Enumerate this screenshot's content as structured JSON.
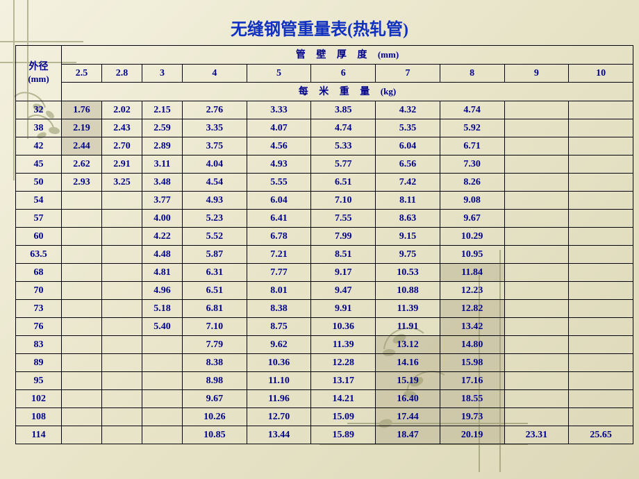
{
  "title": "无缝钢管重量表(热轧管)",
  "title_color": "#1030c0",
  "text_color": "#00008b",
  "background_gradient": [
    "#f4f1e0",
    "#e8e4c8",
    "#dcd8b8"
  ],
  "border_color": "#000000",
  "shade_fill": "rgba(170,160,130,0.35)",
  "decoration_color": "#7a8050",
  "table": {
    "outer_diameter_label": "外径",
    "outer_diameter_unit": "(mm)",
    "thickness_header": "管 壁 厚 度",
    "thickness_unit": "(mm)",
    "weight_header": "每 米 重 量",
    "weight_unit": "(kg)",
    "thicknesses": [
      "2.5",
      "2.8",
      "3",
      "4",
      "5",
      "6",
      "7",
      "8",
      "9",
      "10"
    ],
    "rows": [
      {
        "od": "32",
        "v": [
          "1.76",
          "2.02",
          "2.15",
          "2.76",
          "3.33",
          "3.85",
          "4.32",
          "4.74",
          "",
          ""
        ]
      },
      {
        "od": "38",
        "v": [
          "2.19",
          "2.43",
          "2.59",
          "3.35",
          "4.07",
          "4.74",
          "5.35",
          "5.92",
          "",
          ""
        ]
      },
      {
        "od": "42",
        "v": [
          "2.44",
          "2.70",
          "2.89",
          "3.75",
          "4.56",
          "5.33",
          "6.04",
          "6.71",
          "",
          ""
        ]
      },
      {
        "od": "45",
        "v": [
          "2.62",
          "2.91",
          "3.11",
          "4.04",
          "4.93",
          "5.77",
          "6.56",
          "7.30",
          "",
          ""
        ]
      },
      {
        "od": "50",
        "v": [
          "2.93",
          "3.25",
          "3.48",
          "4.54",
          "5.55",
          "6.51",
          "7.42",
          "8.26",
          "",
          ""
        ]
      },
      {
        "od": "54",
        "v": [
          "",
          "",
          "3.77",
          "4.93",
          "6.04",
          "7.10",
          "8.11",
          "9.08",
          "",
          ""
        ]
      },
      {
        "od": "57",
        "v": [
          "",
          "",
          "4.00",
          "5.23",
          "6.41",
          "7.55",
          "8.63",
          "9.67",
          "",
          ""
        ]
      },
      {
        "od": "60",
        "v": [
          "",
          "",
          "4.22",
          "5.52",
          "6.78",
          "7.99",
          "9.15",
          "10.29",
          "",
          ""
        ]
      },
      {
        "od": "63.5",
        "v": [
          "",
          "",
          "4.48",
          "5.87",
          "7.21",
          "8.51",
          "9.75",
          "10.95",
          "",
          ""
        ]
      },
      {
        "od": "68",
        "v": [
          "",
          "",
          "4.81",
          "6.31",
          "7.77",
          "9.17",
          "10.53",
          "11.84",
          "",
          ""
        ]
      },
      {
        "od": "70",
        "v": [
          "",
          "",
          "4.96",
          "6.51",
          "8.01",
          "9.47",
          "10.88",
          "12.23",
          "",
          ""
        ]
      },
      {
        "od": "73",
        "v": [
          "",
          "",
          "5.18",
          "6.81",
          "8.38",
          "9.91",
          "11.39",
          "12.82",
          "",
          ""
        ]
      },
      {
        "od": "76",
        "v": [
          "",
          "",
          "5.40",
          "7.10",
          "8.75",
          "10.36",
          "11.91",
          "13.42",
          "",
          ""
        ]
      },
      {
        "od": "83",
        "v": [
          "",
          "",
          "",
          "7.79",
          "9.62",
          "11.39",
          "13.12",
          "14.80",
          "",
          ""
        ]
      },
      {
        "od": "89",
        "v": [
          "",
          "",
          "",
          "8.38",
          "10.36",
          "12.28",
          "14.16",
          "15.98",
          "",
          ""
        ]
      },
      {
        "od": "95",
        "v": [
          "",
          "",
          "",
          "8.98",
          "11.10",
          "13.17",
          "15.19",
          "17.16",
          "",
          ""
        ]
      },
      {
        "od": "102",
        "v": [
          "",
          "",
          "",
          "9.67",
          "11.96",
          "14.21",
          "16.40",
          "18.55",
          "",
          ""
        ]
      },
      {
        "od": "108",
        "v": [
          "",
          "",
          "",
          "10.26",
          "12.70",
          "15.09",
          "17.44",
          "19.73",
          "",
          ""
        ]
      },
      {
        "od": "114",
        "v": [
          "",
          "",
          "",
          "10.85",
          "13.44",
          "15.89",
          "18.47",
          "20.19",
          "23.31",
          "25.65"
        ]
      }
    ],
    "shaded_cells": [
      [
        0,
        0
      ],
      [
        1,
        0
      ],
      [
        2,
        0
      ],
      [
        9,
        7
      ],
      [
        11,
        7
      ],
      [
        12,
        7
      ],
      [
        13,
        6
      ],
      [
        13,
        7
      ],
      [
        14,
        6
      ],
      [
        14,
        7
      ],
      [
        15,
        6
      ],
      [
        15,
        7
      ],
      [
        16,
        6
      ],
      [
        16,
        7
      ],
      [
        17,
        6
      ],
      [
        17,
        7
      ],
      [
        18,
        6
      ],
      [
        18,
        7
      ]
    ]
  }
}
